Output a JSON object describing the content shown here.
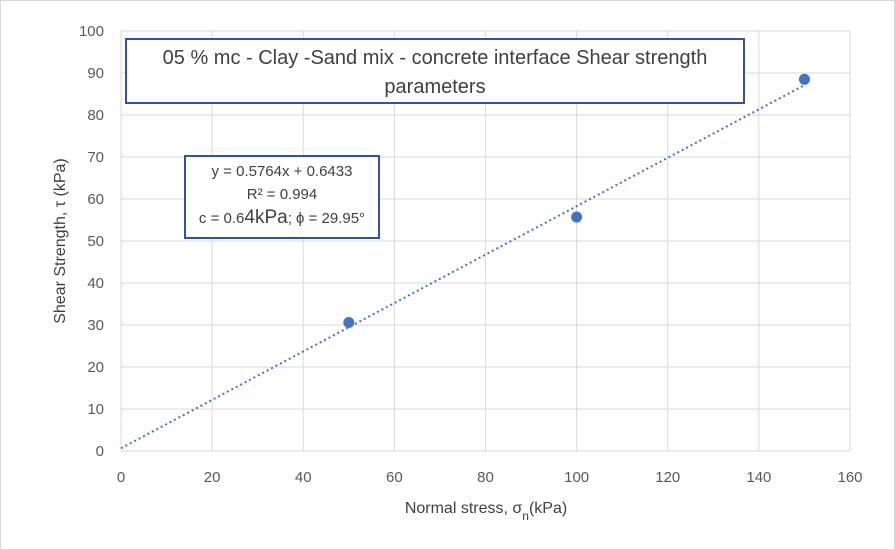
{
  "chart_data": {
    "type": "scatter",
    "title": "05 % mc - Clay -Sand mix - concrete interface Shear strength parameters",
    "title_lines": [
      "05 % mc - Clay -Sand mix - concrete interface Shear strength",
      "parameters"
    ],
    "xlabel": "Normal stress, σn(kPa)",
    "xlabel_parts": {
      "pre": "Normal stress, σ",
      "sub": "n",
      "post": "(kPa)"
    },
    "ylabel": "Shear Strength, τ (kPa)",
    "xlim": [
      0,
      160
    ],
    "ylim": [
      0,
      100
    ],
    "xticks": [
      0,
      20,
      40,
      60,
      80,
      100,
      120,
      140,
      160
    ],
    "yticks": [
      0,
      10,
      20,
      30,
      40,
      50,
      60,
      70,
      80,
      90,
      100
    ],
    "grid": true,
    "series": [
      {
        "points": [
          {
            "x": 50,
            "y": 30.6
          },
          {
            "x": 100,
            "y": 55.7
          },
          {
            "x": 150,
            "y": 88.5
          }
        ]
      }
    ],
    "trendline": {
      "type": "linear",
      "slope": 0.5764,
      "intercept": 0.6433,
      "x_range": [
        0,
        150
      ],
      "style": "dotted"
    },
    "annotation": {
      "equation": "y = 0.5764x + 0.6433",
      "r_squared": "R² = 0.994",
      "params_pre": "c = 0.6",
      "params_big": "4kPa",
      "params_post": "; ϕ = 29.95°"
    },
    "colors": {
      "marker": "#4472c4",
      "trendline": "#4472c4",
      "grid": "#d9d9d9",
      "box_border": "#2f5597"
    }
  }
}
